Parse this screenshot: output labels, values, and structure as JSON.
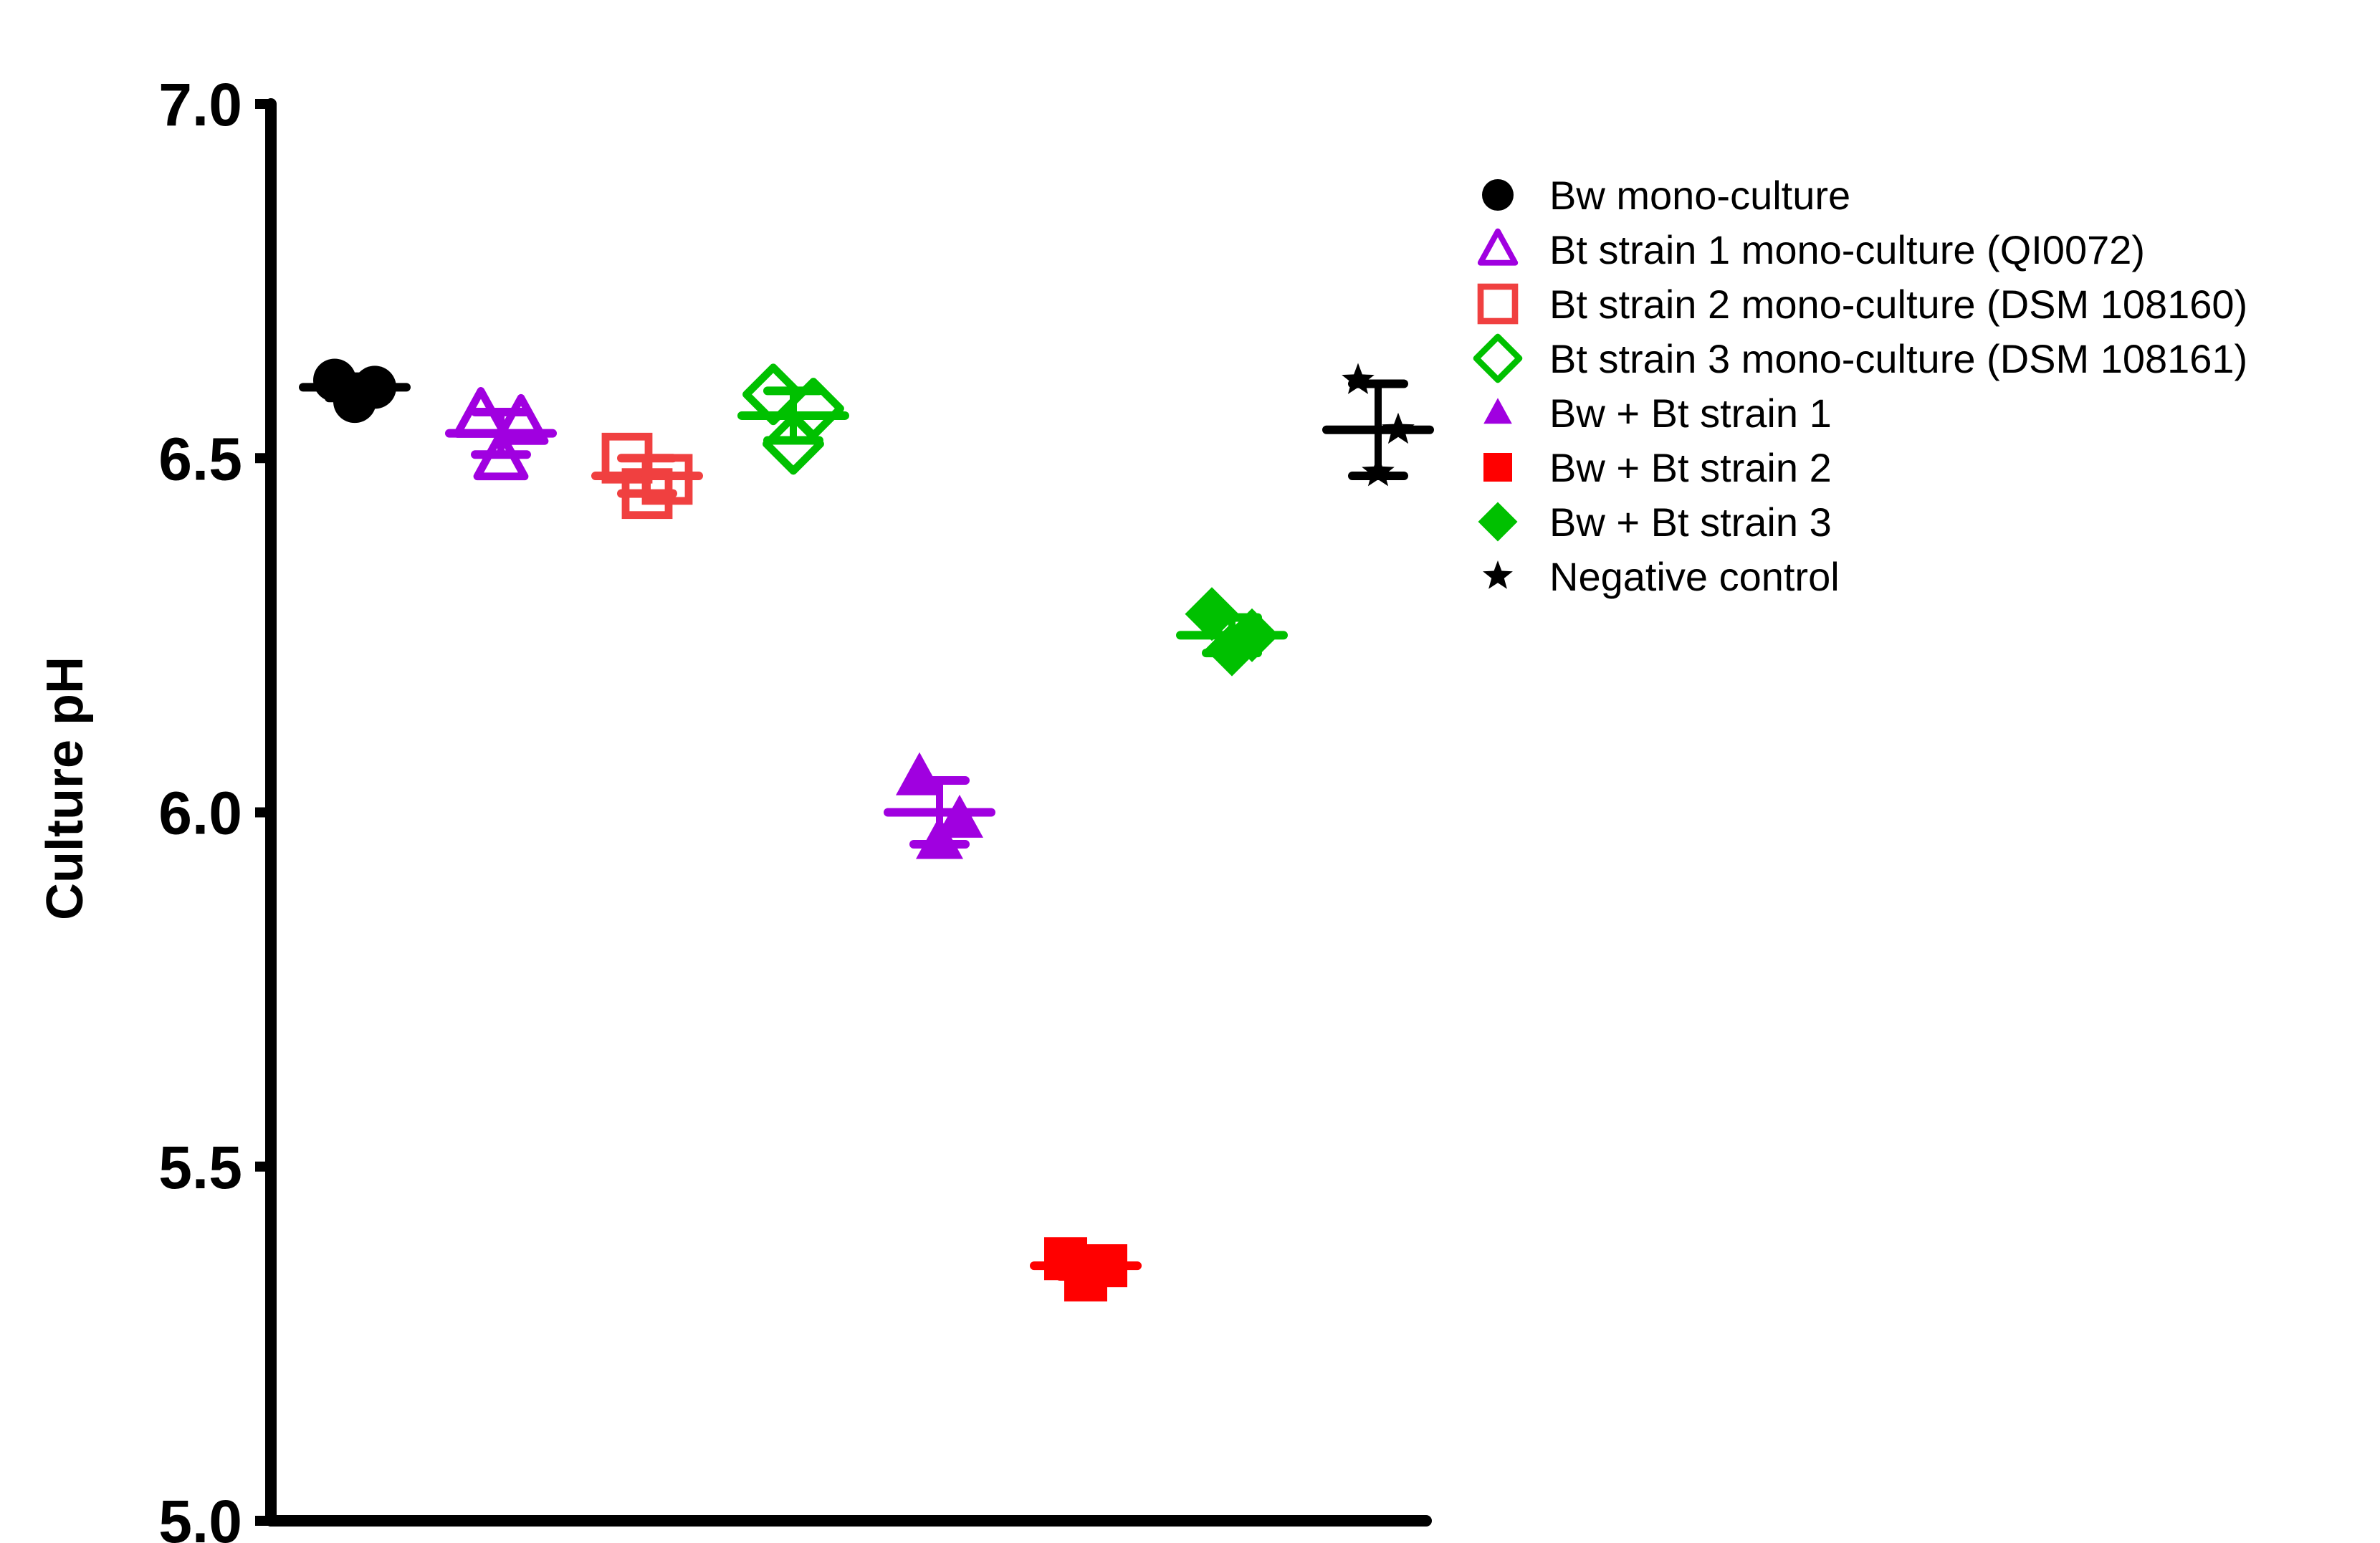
{
  "chart_data": {
    "type": "scatter",
    "title": "",
    "xlabel": "",
    "ylabel": "Culture pH",
    "ylim": [
      5.0,
      7.0
    ],
    "yticks": [
      "5.0",
      "5.5",
      "6.0",
      "6.5",
      "7.0"
    ],
    "grid": false,
    "legend_position": "top-right",
    "series": [
      {
        "name": "Bw mono-culture",
        "color": "#000000",
        "marker": "circle-filled",
        "points": [
          6.61,
          6.58,
          6.6
        ],
        "mean": 6.6
      },
      {
        "name": "Bt strain 1 mono-culture (QI0072)",
        "color": "#A000E0",
        "marker": "triangle-open",
        "points": [
          6.56,
          6.5,
          6.55
        ],
        "mean": 6.535
      },
      {
        "name": "Bt strain 2 mono-culture (DSM 108160)",
        "color": "#F04040",
        "marker": "square-open",
        "points": [
          6.5,
          6.45,
          6.47
        ],
        "mean": 6.475
      },
      {
        "name": "Bt strain 3 mono-culture (DSM 108161)",
        "color": "#00C000",
        "marker": "diamond-open",
        "points": [
          6.59,
          6.52,
          6.57
        ],
        "mean": 6.56
      },
      {
        "name": "Bw + Bt strain 1",
        "color": "#A000E0",
        "marker": "triangle-filled",
        "points": [
          6.05,
          5.96,
          5.99
        ],
        "mean": 6.0
      },
      {
        "name": "Bw + Bt strain 2",
        "color": "#FF0000",
        "marker": "square-filled",
        "points": [
          5.37,
          5.34,
          5.36
        ],
        "mean": 5.36
      },
      {
        "name": "Bw + Bt strain 3",
        "color": "#00C000",
        "marker": "diamond-filled",
        "points": [
          6.28,
          6.23,
          6.25
        ],
        "mean": 6.25
      },
      {
        "name": "Negative control",
        "color": "#000000",
        "marker": "star",
        "points": [
          6.61,
          6.48,
          6.54
        ],
        "mean": 6.54
      }
    ]
  }
}
